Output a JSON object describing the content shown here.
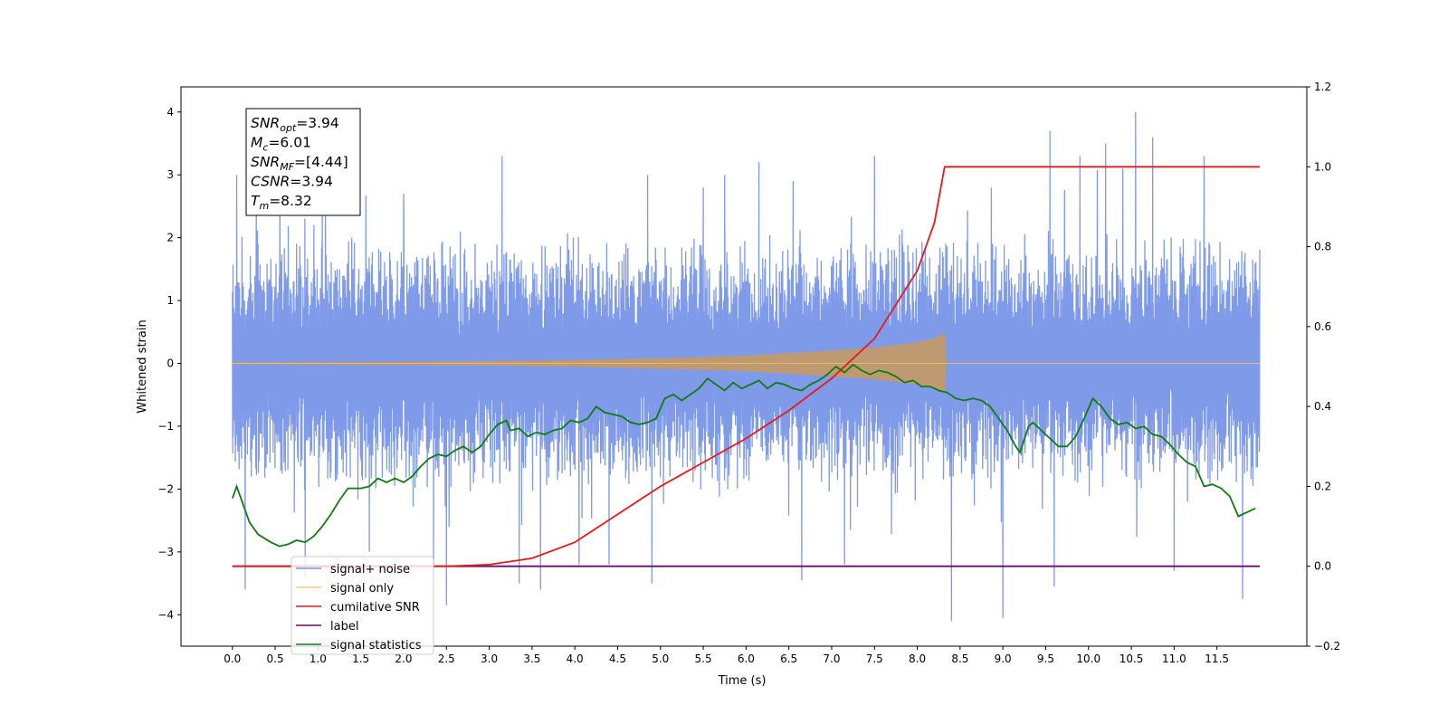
{
  "chart_data": {
    "type": "line",
    "xlabel": "Time (s)",
    "ylabel": "Whitened strain",
    "x_ticks": [
      "0.0",
      "0.5",
      "1.0",
      "1.5",
      "2.0",
      "2.5",
      "3.0",
      "3.5",
      "4.0",
      "4.5",
      "5.0",
      "5.5",
      "6.0",
      "6.5",
      "7.0",
      "7.5",
      "8.0",
      "8.5",
      "9.0",
      "9.5",
      "10.0",
      "10.5",
      "11.0",
      "11.5"
    ],
    "y_left_ticks": [
      "−4",
      "−3",
      "−2",
      "−1",
      "0",
      "1",
      "2",
      "3",
      "4"
    ],
    "y_right_ticks": [
      "−0.2",
      "0.0",
      "0.2",
      "0.4",
      "0.6",
      "0.8",
      "1.0",
      "1.2"
    ],
    "xlim": [
      -0.6,
      12.55
    ],
    "ylim_left": [
      -4.5,
      4.4
    ],
    "ylim_right": [
      -0.2,
      1.2
    ],
    "grid": false,
    "legend_position": "lower-left",
    "annotation": {
      "lines": [
        {
          "base": "SNR",
          "sub": "opt",
          "value": "=3.94"
        },
        {
          "base": "M",
          "sub": "c",
          "value": "=6.01"
        },
        {
          "base": "SNR",
          "sub": "MF",
          "value": "=[4.44]"
        },
        {
          "base": "CSNR",
          "sub": "",
          "value": "=3.94"
        },
        {
          "base": "T",
          "sub": "m",
          "value": "=8.32"
        }
      ]
    },
    "series": [
      {
        "name": "signal+ noise",
        "axis": "left",
        "color": "#7895e8",
        "style": "noise band, approx. range -2 to 2 with spikes to ±4",
        "x_range": [
          0.0,
          12.0
        ],
        "spikes": [
          [
            0.05,
            3.0
          ],
          [
            0.15,
            -3.6
          ],
          [
            0.28,
            2.4
          ],
          [
            0.85,
            -3.4
          ],
          [
            1.05,
            2.8
          ],
          [
            1.6,
            -3.0
          ],
          [
            2.0,
            2.7
          ],
          [
            2.35,
            -3.2
          ],
          [
            2.5,
            -3.85
          ],
          [
            3.15,
            3.3
          ],
          [
            3.35,
            -3.5
          ],
          [
            3.6,
            -3.6
          ],
          [
            4.05,
            -3.2
          ],
          [
            4.4,
            -3.2
          ],
          [
            4.85,
            3.0
          ],
          [
            4.9,
            -3.5
          ],
          [
            5.5,
            2.8
          ],
          [
            5.75,
            3.0
          ],
          [
            6.15,
            3.2
          ],
          [
            6.55,
            2.9
          ],
          [
            6.65,
            -3.45
          ],
          [
            7.15,
            -3.2
          ],
          [
            7.5,
            3.3
          ],
          [
            8.4,
            -4.1
          ],
          [
            9.0,
            -4.05
          ],
          [
            9.55,
            3.7
          ],
          [
            9.6,
            -3.55
          ],
          [
            9.9,
            3.3
          ],
          [
            10.2,
            3.5
          ],
          [
            10.4,
            3.1
          ],
          [
            10.55,
            4.0
          ],
          [
            10.75,
            3.6
          ],
          [
            11.0,
            -3.3
          ],
          [
            11.35,
            3.3
          ],
          [
            11.8,
            -3.75
          ]
        ]
      },
      {
        "name": "signal only",
        "axis": "left",
        "color": "#c8a27a",
        "style": "chirp envelope",
        "envelope": [
          [
            0.0,
            0.01
          ],
          [
            2.0,
            0.02
          ],
          [
            3.0,
            0.03
          ],
          [
            4.0,
            0.05
          ],
          [
            5.0,
            0.08
          ],
          [
            6.0,
            0.12
          ],
          [
            7.0,
            0.2
          ],
          [
            7.5,
            0.25
          ],
          [
            8.0,
            0.33
          ],
          [
            8.2,
            0.4
          ],
          [
            8.32,
            0.48
          ],
          [
            8.33,
            0.0
          ],
          [
            12.0,
            0.0
          ]
        ]
      },
      {
        "name": "cumilative SNR",
        "axis": "right",
        "color": "#e8191a",
        "points": [
          [
            0.0,
            0.0
          ],
          [
            2.0,
            0.0
          ],
          [
            2.5,
            0.0
          ],
          [
            3.0,
            0.004
          ],
          [
            3.5,
            0.02
          ],
          [
            4.0,
            0.06
          ],
          [
            4.5,
            0.13
          ],
          [
            5.0,
            0.2
          ],
          [
            5.5,
            0.26
          ],
          [
            6.0,
            0.32
          ],
          [
            6.5,
            0.39
          ],
          [
            7.0,
            0.47
          ],
          [
            7.5,
            0.57
          ],
          [
            8.0,
            0.74
          ],
          [
            8.2,
            0.86
          ],
          [
            8.32,
            1.0
          ],
          [
            12.0,
            1.0
          ]
        ]
      },
      {
        "name": "label",
        "axis": "right",
        "color": "#6a0a6e",
        "points": [
          [
            0.0,
            0.0
          ],
          [
            12.0,
            0.0
          ]
        ]
      },
      {
        "name": "signal statistics",
        "axis": "right",
        "color": "#137a13",
        "points": [
          [
            0.0,
            0.17
          ],
          [
            0.05,
            0.2
          ],
          [
            0.1,
            0.17
          ],
          [
            0.2,
            0.11
          ],
          [
            0.3,
            0.08
          ],
          [
            0.45,
            0.06
          ],
          [
            0.55,
            0.05
          ],
          [
            0.65,
            0.055
          ],
          [
            0.75,
            0.065
          ],
          [
            0.85,
            0.06
          ],
          [
            0.95,
            0.075
          ],
          [
            1.05,
            0.1
          ],
          [
            1.15,
            0.13
          ],
          [
            1.25,
            0.165
          ],
          [
            1.35,
            0.195
          ],
          [
            1.5,
            0.195
          ],
          [
            1.6,
            0.2
          ],
          [
            1.7,
            0.22
          ],
          [
            1.8,
            0.21
          ],
          [
            1.9,
            0.22
          ],
          [
            2.0,
            0.21
          ],
          [
            2.1,
            0.225
          ],
          [
            2.2,
            0.25
          ],
          [
            2.3,
            0.27
          ],
          [
            2.4,
            0.28
          ],
          [
            2.5,
            0.275
          ],
          [
            2.6,
            0.29
          ],
          [
            2.7,
            0.3
          ],
          [
            2.8,
            0.285
          ],
          [
            2.9,
            0.3
          ],
          [
            3.0,
            0.33
          ],
          [
            3.1,
            0.355
          ],
          [
            3.2,
            0.365
          ],
          [
            3.25,
            0.34
          ],
          [
            3.35,
            0.345
          ],
          [
            3.45,
            0.325
          ],
          [
            3.55,
            0.335
          ],
          [
            3.65,
            0.33
          ],
          [
            3.75,
            0.34
          ],
          [
            3.85,
            0.345
          ],
          [
            3.95,
            0.365
          ],
          [
            4.05,
            0.36
          ],
          [
            4.15,
            0.37
          ],
          [
            4.25,
            0.4
          ],
          [
            4.35,
            0.385
          ],
          [
            4.45,
            0.38
          ],
          [
            4.55,
            0.375
          ],
          [
            4.65,
            0.36
          ],
          [
            4.75,
            0.355
          ],
          [
            4.85,
            0.36
          ],
          [
            4.95,
            0.37
          ],
          [
            5.05,
            0.42
          ],
          [
            5.15,
            0.43
          ],
          [
            5.25,
            0.415
          ],
          [
            5.35,
            0.43
          ],
          [
            5.45,
            0.445
          ],
          [
            5.55,
            0.47
          ],
          [
            5.65,
            0.455
          ],
          [
            5.75,
            0.44
          ],
          [
            5.85,
            0.46
          ],
          [
            5.95,
            0.445
          ],
          [
            6.05,
            0.455
          ],
          [
            6.15,
            0.465
          ],
          [
            6.25,
            0.445
          ],
          [
            6.35,
            0.46
          ],
          [
            6.45,
            0.455
          ],
          [
            6.55,
            0.445
          ],
          [
            6.65,
            0.44
          ],
          [
            6.75,
            0.455
          ],
          [
            6.85,
            0.465
          ],
          [
            6.95,
            0.48
          ],
          [
            7.05,
            0.5
          ],
          [
            7.15,
            0.485
          ],
          [
            7.25,
            0.505
          ],
          [
            7.35,
            0.49
          ],
          [
            7.45,
            0.48
          ],
          [
            7.55,
            0.49
          ],
          [
            7.65,
            0.485
          ],
          [
            7.75,
            0.475
          ],
          [
            7.85,
            0.46
          ],
          [
            7.95,
            0.465
          ],
          [
            8.05,
            0.45
          ],
          [
            8.15,
            0.45
          ],
          [
            8.25,
            0.44
          ],
          [
            8.35,
            0.435
          ],
          [
            8.45,
            0.42
          ],
          [
            8.55,
            0.415
          ],
          [
            8.65,
            0.42
          ],
          [
            8.75,
            0.415
          ],
          [
            8.85,
            0.4
          ],
          [
            8.95,
            0.37
          ],
          [
            9.05,
            0.34
          ],
          [
            9.15,
            0.3
          ],
          [
            9.2,
            0.285
          ],
          [
            9.3,
            0.35
          ],
          [
            9.35,
            0.36
          ],
          [
            9.45,
            0.34
          ],
          [
            9.55,
            0.32
          ],
          [
            9.65,
            0.3
          ],
          [
            9.75,
            0.3
          ],
          [
            9.85,
            0.325
          ],
          [
            9.95,
            0.37
          ],
          [
            10.05,
            0.42
          ],
          [
            10.15,
            0.4
          ],
          [
            10.25,
            0.37
          ],
          [
            10.35,
            0.355
          ],
          [
            10.45,
            0.36
          ],
          [
            10.55,
            0.345
          ],
          [
            10.65,
            0.35
          ],
          [
            10.75,
            0.33
          ],
          [
            10.85,
            0.325
          ],
          [
            10.95,
            0.305
          ],
          [
            11.05,
            0.28
          ],
          [
            11.15,
            0.26
          ],
          [
            11.25,
            0.25
          ],
          [
            11.3,
            0.225
          ],
          [
            11.35,
            0.2
          ],
          [
            11.45,
            0.205
          ],
          [
            11.55,
            0.195
          ],
          [
            11.65,
            0.175
          ],
          [
            11.75,
            0.125
          ],
          [
            11.85,
            0.135
          ],
          [
            11.95,
            0.145
          ]
        ]
      }
    ]
  }
}
